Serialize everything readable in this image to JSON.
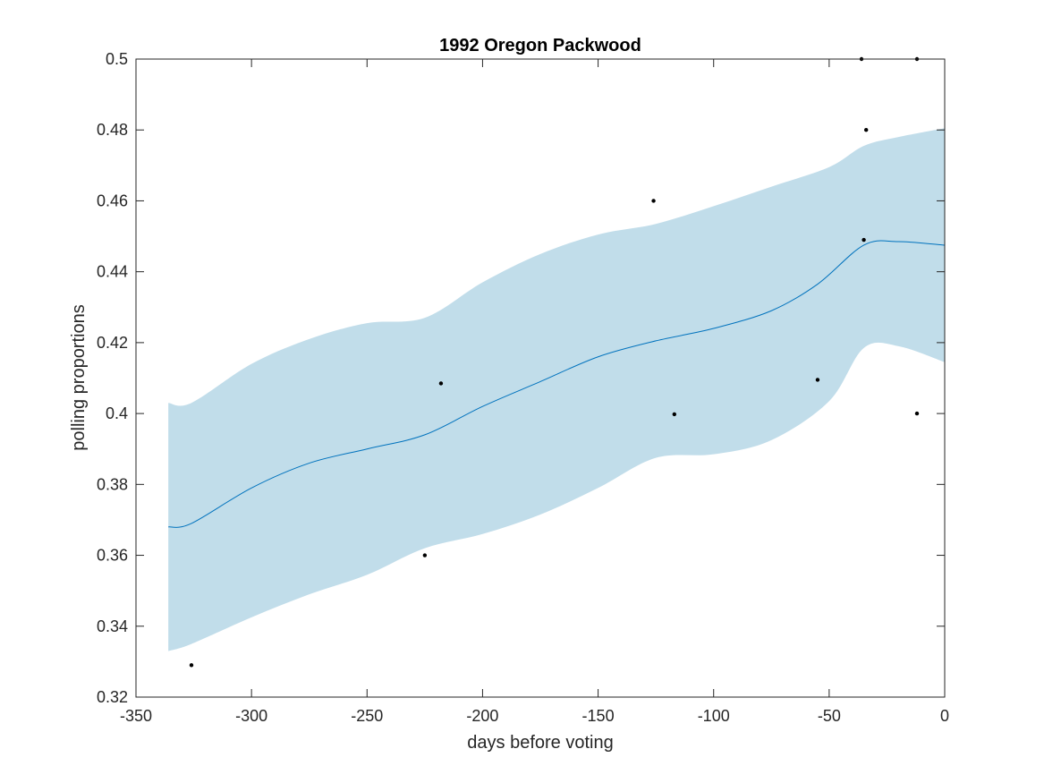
{
  "chart_data": {
    "type": "line",
    "title": "1992 Oregon Packwood",
    "xlabel": "days before voting",
    "ylabel": "polling proportions",
    "xlim": [
      -350,
      0
    ],
    "ylim": [
      0.32,
      0.5
    ],
    "xticks": [
      "-350",
      "-300",
      "-250",
      "-200",
      "-150",
      "-100",
      "-50",
      "0"
    ],
    "yticks": [
      "0.32",
      "0.34",
      "0.36",
      "0.38",
      "0.4",
      "0.42",
      "0.44",
      "0.46",
      "0.48",
      "0.5"
    ],
    "grid": false,
    "legend": false,
    "colors": {
      "band": "#c1ddea",
      "line": "#0072bd",
      "points": "#000000",
      "axes": "#262626"
    },
    "series": [
      {
        "type": "line",
        "x": [
          -336,
          -326,
          -300,
          -275,
          -250,
          -225,
          -200,
          -175,
          -150,
          -125,
          -100,
          -75,
          -55,
          -35,
          -20,
          0
        ],
        "y": [
          0.368,
          0.369,
          0.379,
          0.386,
          0.39,
          0.394,
          0.402,
          0.409,
          0.416,
          0.4205,
          0.424,
          0.429,
          0.4365,
          0.4475,
          0.4485,
          0.4475
        ]
      },
      {
        "type": "band",
        "x": [
          -336,
          -326,
          -300,
          -275,
          -250,
          -225,
          -200,
          -175,
          -150,
          -125,
          -100,
          -75,
          -50,
          -35,
          -20,
          0
        ],
        "upper": [
          0.403,
          0.403,
          0.414,
          0.421,
          0.4255,
          0.427,
          0.437,
          0.445,
          0.4505,
          0.4535,
          0.4585,
          0.464,
          0.4695,
          0.4755,
          0.478,
          0.4805
        ],
        "lower": [
          0.333,
          0.335,
          0.3425,
          0.349,
          0.3545,
          0.362,
          0.366,
          0.3715,
          0.379,
          0.3875,
          0.3885,
          0.3925,
          0.4035,
          0.4185,
          0.419,
          0.4145
        ]
      },
      {
        "type": "scatter",
        "x": [
          -326,
          -225,
          -218,
          -126,
          -117,
          -55,
          -36,
          -35,
          -34,
          -12,
          -12
        ],
        "y": [
          0.329,
          0.36,
          0.4085,
          0.46,
          0.3998,
          0.4095,
          0.5,
          0.449,
          0.48,
          0.5,
          0.4
        ]
      }
    ]
  }
}
